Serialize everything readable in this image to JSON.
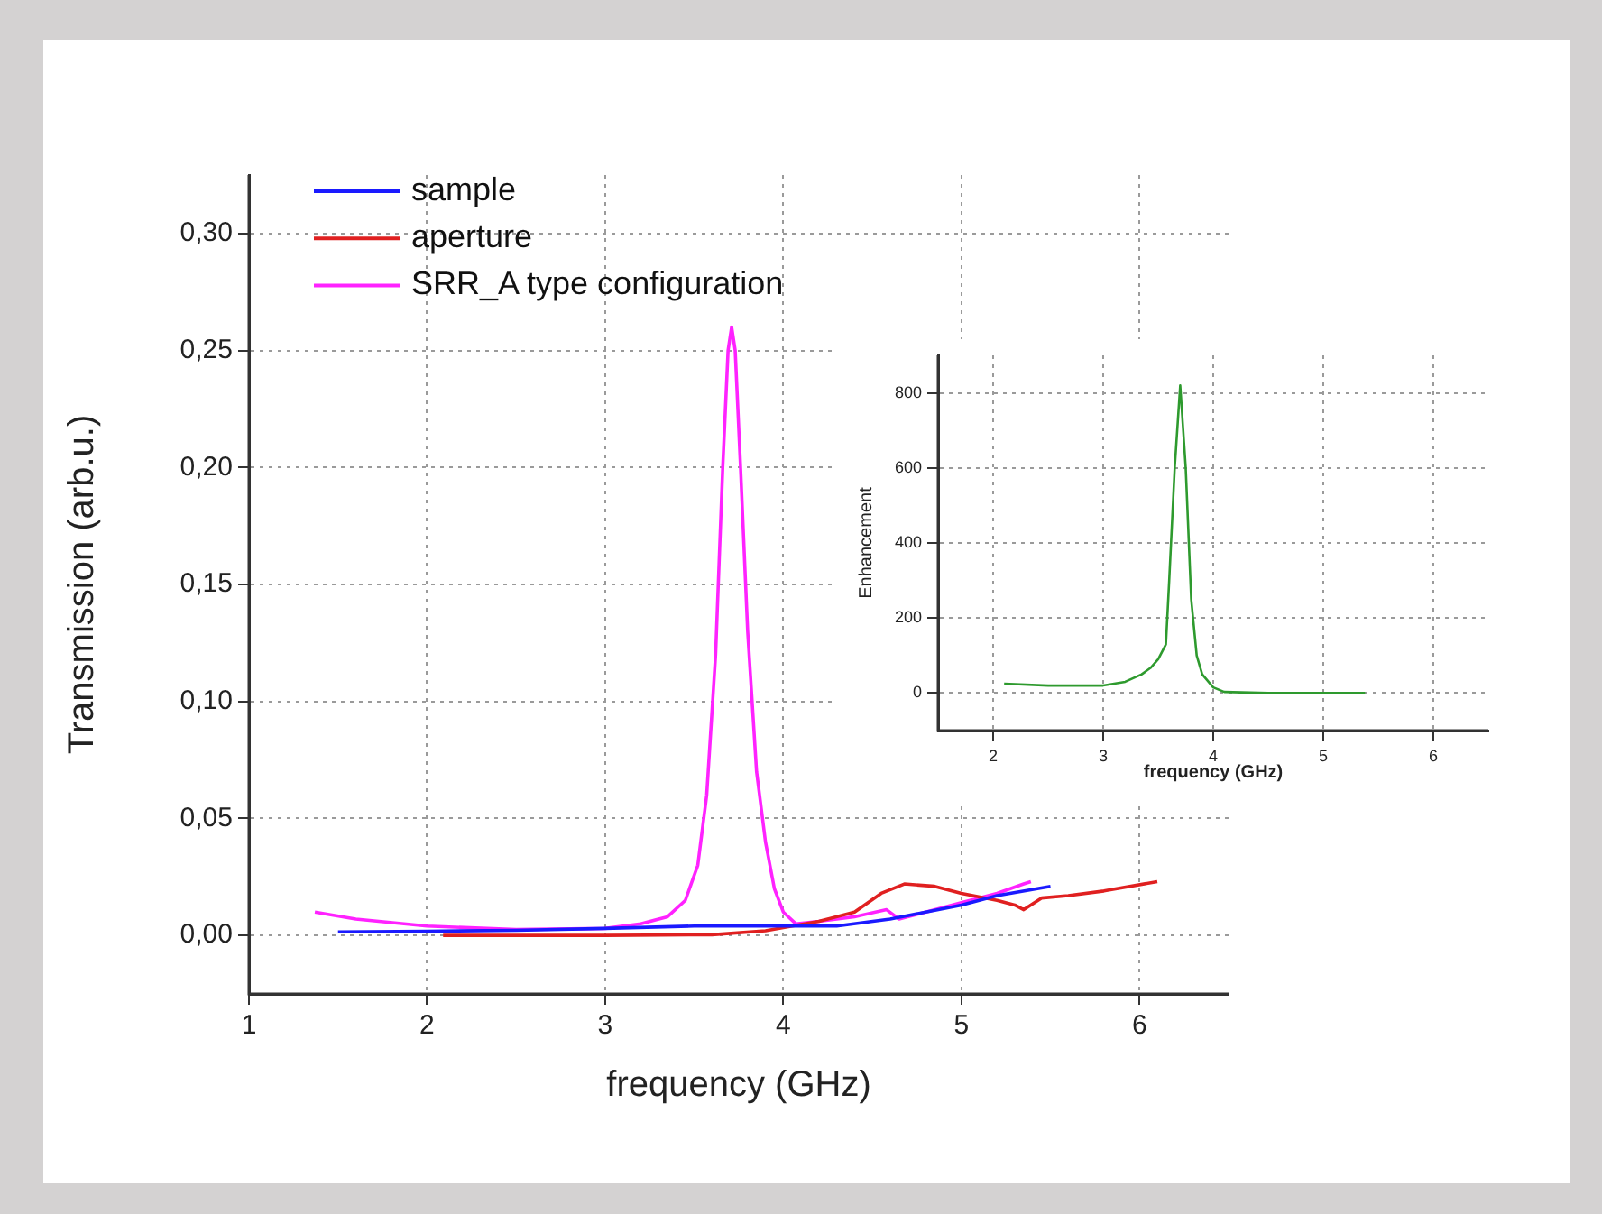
{
  "chart_data": [
    {
      "type": "line",
      "xlabel": "frequency (GHz)",
      "ylabel": "Transmission (arb.u.)",
      "xlim": [
        1,
        6.5
      ],
      "ylim": [
        -0.025,
        0.325
      ],
      "xticks": [
        1,
        2,
        3,
        4,
        5,
        6
      ],
      "yticks": [
        {
          "value": 0,
          "label": "0,00"
        },
        {
          "value": 0.05,
          "label": "0,05"
        },
        {
          "value": 0.1,
          "label": "0,10"
        },
        {
          "value": 0.15,
          "label": "0,15"
        },
        {
          "value": 0.2,
          "label": "0,20"
        },
        {
          "value": 0.25,
          "label": "0,25"
        },
        {
          "value": 0.3,
          "label": "0,30"
        }
      ],
      "grid": true,
      "legend": "top left",
      "marker": "none",
      "series": [
        {
          "name": "sample",
          "color": "#1a1aff",
          "x": [
            1.5,
            2.0,
            2.5,
            3.0,
            3.5,
            4.0,
            4.3,
            4.6,
            4.8,
            5.0,
            5.2,
            5.5
          ],
          "values": [
            0.0015,
            0.0018,
            0.0022,
            0.003,
            0.004,
            0.004,
            0.004,
            0.007,
            0.01,
            0.013,
            0.017,
            0.021
          ]
        },
        {
          "name": "aperture",
          "color": "#e02020",
          "x": [
            2.09,
            2.5,
            3.0,
            3.6,
            3.9,
            4.2,
            4.4,
            4.55,
            4.68,
            4.85,
            5.0,
            5.2,
            5.3,
            5.35,
            5.45,
            5.6,
            5.8,
            6.1
          ],
          "values": [
            0,
            0,
            0,
            0.0003,
            0.002,
            0.006,
            0.01,
            0.018,
            0.022,
            0.021,
            0.018,
            0.015,
            0.013,
            0.011,
            0.016,
            0.017,
            0.019,
            0.023
          ]
        },
        {
          "name": "SRR_A type configuration",
          "color": "#ff22ff",
          "x": [
            1.37,
            1.6,
            2.0,
            2.5,
            3.0,
            3.2,
            3.35,
            3.45,
            3.52,
            3.57,
            3.62,
            3.66,
            3.69,
            3.71,
            3.73,
            3.76,
            3.8,
            3.85,
            3.9,
            3.95,
            4.0,
            4.07,
            4.2,
            4.4,
            4.58,
            4.65,
            4.8,
            5.0,
            5.2,
            5.35,
            5.39
          ],
          "values": [
            0.01,
            0.007,
            0.004,
            0.0025,
            0.003,
            0.005,
            0.008,
            0.015,
            0.03,
            0.06,
            0.12,
            0.2,
            0.25,
            0.26,
            0.25,
            0.2,
            0.13,
            0.07,
            0.04,
            0.02,
            0.01,
            0.005,
            0.006,
            0.008,
            0.011,
            0.007,
            0.01,
            0.014,
            0.018,
            0.022,
            0.023
          ]
        }
      ]
    },
    {
      "type": "line",
      "xlabel": "frequency (GHz)",
      "ylabel": "Enhancement",
      "xlim": [
        1.5,
        6.5
      ],
      "ylim": [
        -100,
        900
      ],
      "xticks": [
        2,
        3,
        4,
        5,
        6
      ],
      "yticks": [
        0,
        200,
        400,
        600,
        800
      ],
      "grid": true,
      "marker": "none",
      "series": [
        {
          "color": "#2e9a2e",
          "x": [
            2.1,
            2.5,
            3.0,
            3.2,
            3.35,
            3.43,
            3.5,
            3.57,
            3.6,
            3.65,
            3.7,
            3.75,
            3.8,
            3.85,
            3.9,
            4.0,
            4.1,
            4.5,
            5.0,
            5.38
          ],
          "values": [
            25,
            20,
            20,
            30,
            50,
            67,
            90,
            130,
            300,
            600,
            820,
            600,
            250,
            100,
            50,
            15,
            3,
            0,
            0,
            0
          ]
        }
      ]
    }
  ]
}
